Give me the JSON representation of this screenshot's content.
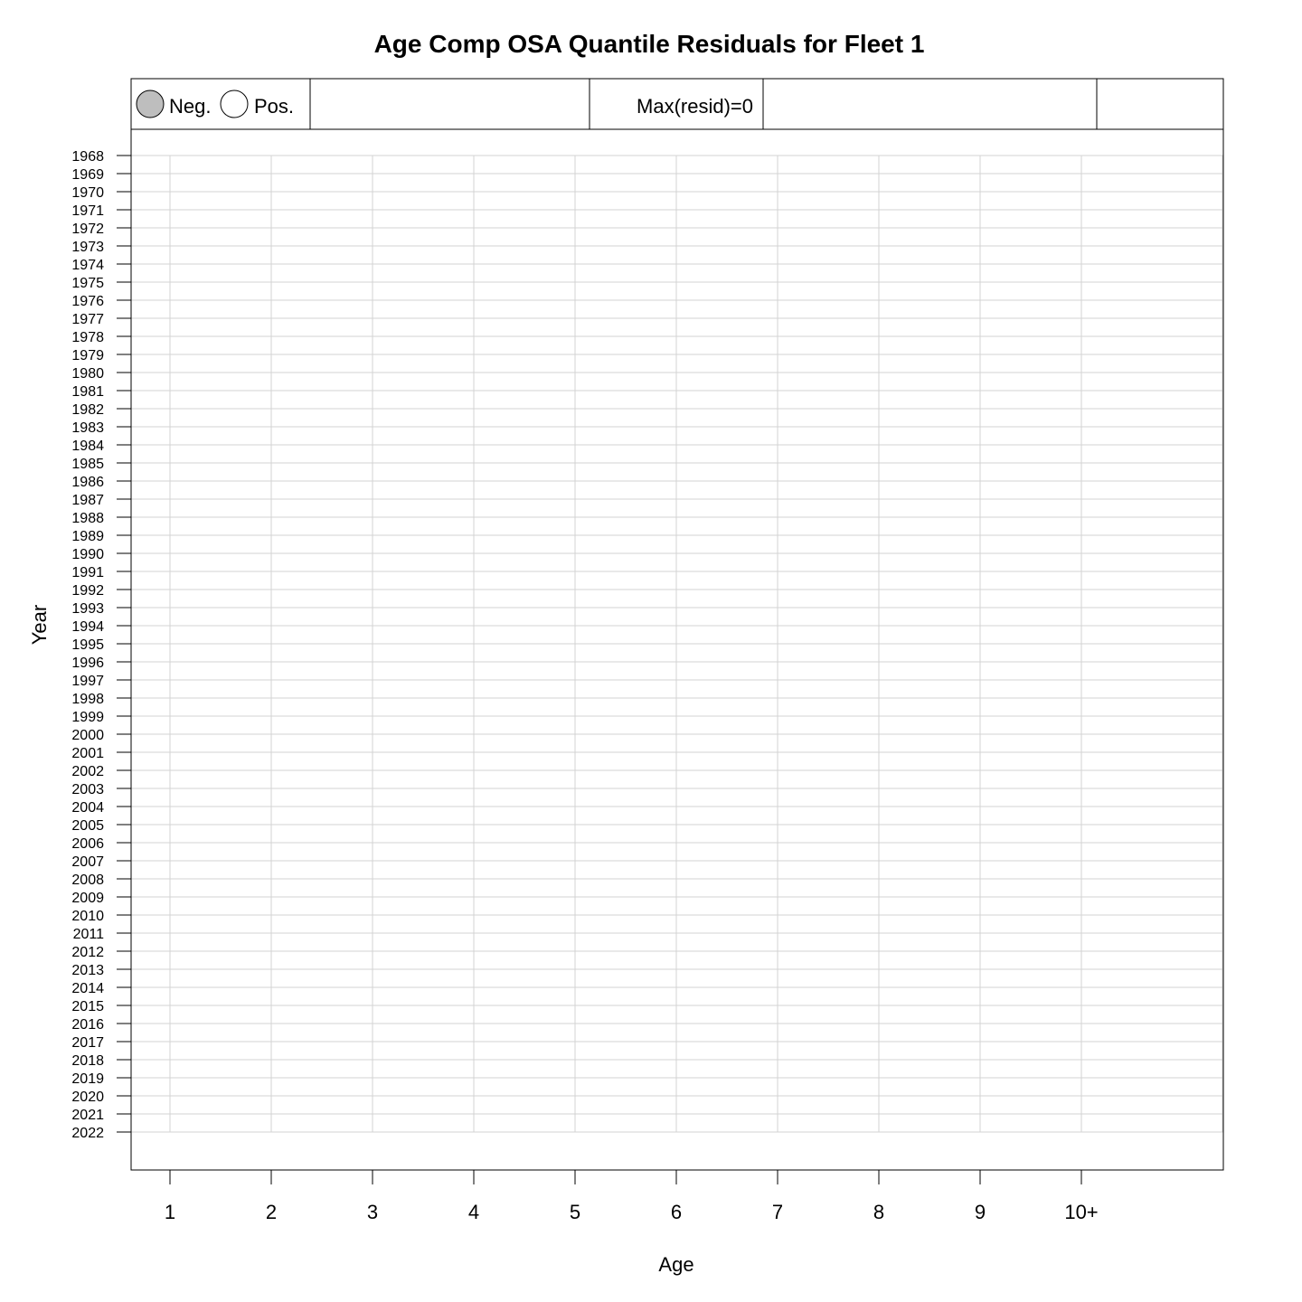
{
  "chart_data": {
    "type": "scatter",
    "title": "Age Comp OSA Quantile Residuals for Fleet 1",
    "xlabel": "Age",
    "ylabel": "Year",
    "x_categories": [
      "1",
      "2",
      "3",
      "4",
      "5",
      "6",
      "7",
      "8",
      "9",
      "10+"
    ],
    "years": [
      1968,
      1969,
      1970,
      1971,
      1972,
      1973,
      1974,
      1975,
      1976,
      1977,
      1978,
      1979,
      1980,
      1981,
      1982,
      1983,
      1984,
      1985,
      1986,
      1987,
      1988,
      1989,
      1990,
      1991,
      1992,
      1993,
      1994,
      1995,
      1996,
      1997,
      1998,
      1999,
      2000,
      2001,
      2002,
      2003,
      2004,
      2005,
      2006,
      2007,
      2008,
      2009,
      2010,
      2011,
      2012,
      2013,
      2014,
      2015,
      2016,
      2017,
      2018,
      2019,
      2020,
      2021,
      2022
    ],
    "points": [],
    "grid": true,
    "legend": {
      "placement": "top-left",
      "entries": [
        {
          "label": "Neg.",
          "fill": "#bebebe"
        },
        {
          "label": "Pos.",
          "fill": "#ffffff"
        }
      ]
    },
    "annotation": "Max(resid)=0"
  },
  "colors": {
    "grid": "#d3d3d3",
    "axis": "#000000",
    "neg_fill": "#bebebe",
    "pos_fill": "#ffffff"
  }
}
